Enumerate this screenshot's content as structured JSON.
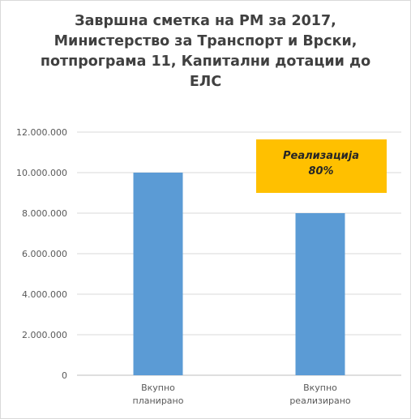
{
  "chart_data": {
    "type": "bar",
    "title": "Завршна сметка на РМ за 2017, Министерство за Транспорт и Врски, потпрограма 11, Капитални дотации до ЕЛС",
    "categories": [
      [
        "Вкупно",
        "планирано"
      ],
      [
        "Вкупно",
        "реализирано"
      ]
    ],
    "values": [
      10000000,
      8000000
    ],
    "ylim": [
      0,
      12000000
    ],
    "yticks": [
      0,
      2000000,
      4000000,
      6000000,
      8000000,
      10000000,
      12000000
    ],
    "ytick_labels": [
      "0",
      "2.000.000",
      "4.000.000",
      "6.000.000",
      "8.000.000",
      "10.000.000",
      "12.000.000"
    ],
    "grid": true,
    "legend": "none",
    "bar_color": "#5b9bd5",
    "annotation": {
      "lines": [
        "Реализација",
        "80%"
      ],
      "background": "#ffc000"
    }
  }
}
